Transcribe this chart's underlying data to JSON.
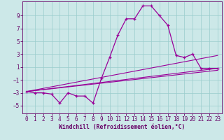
{
  "xlabel": "Windchill (Refroidissement éolien,°C)",
  "bg_color": "#cce8e8",
  "grid_color": "#99cccc",
  "line_color": "#990099",
  "text_color": "#660066",
  "xlim": [
    -0.5,
    23.5
  ],
  "ylim": [
    -6.2,
    11.2
  ],
  "xticks": [
    0,
    1,
    2,
    3,
    4,
    5,
    6,
    7,
    8,
    9,
    10,
    11,
    12,
    13,
    14,
    15,
    16,
    17,
    18,
    19,
    20,
    21,
    22,
    23
  ],
  "yticks": [
    -5,
    -3,
    -1,
    1,
    3,
    5,
    7,
    9
  ],
  "series_main": {
    "x": [
      0,
      1,
      2,
      3,
      4,
      5,
      6,
      7,
      8,
      9,
      10,
      11,
      12,
      13,
      14,
      15,
      16,
      17,
      18,
      19,
      20,
      21,
      22,
      23
    ],
    "y": [
      -2.8,
      -3.0,
      -3.0,
      -3.2,
      -4.6,
      -3.0,
      -3.5,
      -3.5,
      -4.6,
      -0.8,
      2.5,
      6.0,
      8.5,
      8.5,
      10.5,
      10.5,
      9.0,
      7.5,
      2.8,
      2.5,
      3.0,
      0.8,
      0.8,
      0.8
    ]
  },
  "series_line1": {
    "x": [
      0,
      23
    ],
    "y": [
      -2.8,
      0.8
    ]
  },
  "series_line2": {
    "x": [
      0,
      23
    ],
    "y": [
      -2.8,
      0.5
    ]
  },
  "series_line3": {
    "x": [
      0,
      23
    ],
    "y": [
      -2.8,
      2.8
    ]
  },
  "tick_fontsize": 5.5,
  "xlabel_fontsize": 5.8
}
